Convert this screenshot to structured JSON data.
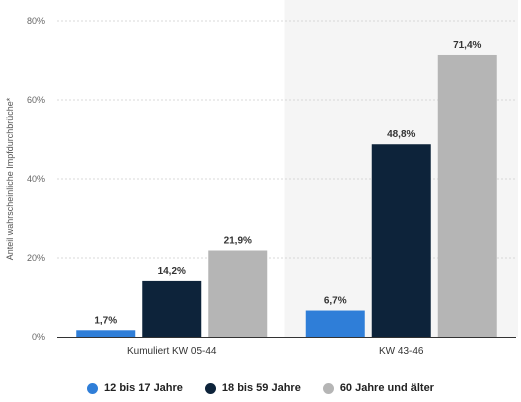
{
  "chart_data": {
    "type": "bar",
    "categories": [
      "Kumuliert KW 05-44",
      "KW 43-46"
    ],
    "series": [
      {
        "name": "12 bis 17 Jahre",
        "values": [
          1.7,
          6.7
        ],
        "labels": [
          "1,7%",
          "6,7%"
        ],
        "color": "#2f7ed8"
      },
      {
        "name": "18 bis 59 Jahre",
        "values": [
          14.2,
          48.8
        ],
        "labels": [
          "14,2%",
          "48,8%"
        ],
        "color": "#0d233a"
      },
      {
        "name": "60 Jahre und älter",
        "values": [
          21.9,
          71.4
        ],
        "labels": [
          "21,9%",
          "71,4%"
        ],
        "color": "#b5b5b5"
      }
    ],
    "ylabel": "Anteil wahrscheinliche Impfdurchbrüche*",
    "ylim": [
      0,
      80
    ],
    "yticks": [
      0,
      20,
      40,
      60,
      80
    ],
    "ytick_labels": [
      "0%",
      "20%",
      "40%",
      "60%",
      "80%"
    ],
    "grid": true,
    "highlighted_category_background": "#f5f5f5",
    "legend_position": "bottom-center"
  }
}
